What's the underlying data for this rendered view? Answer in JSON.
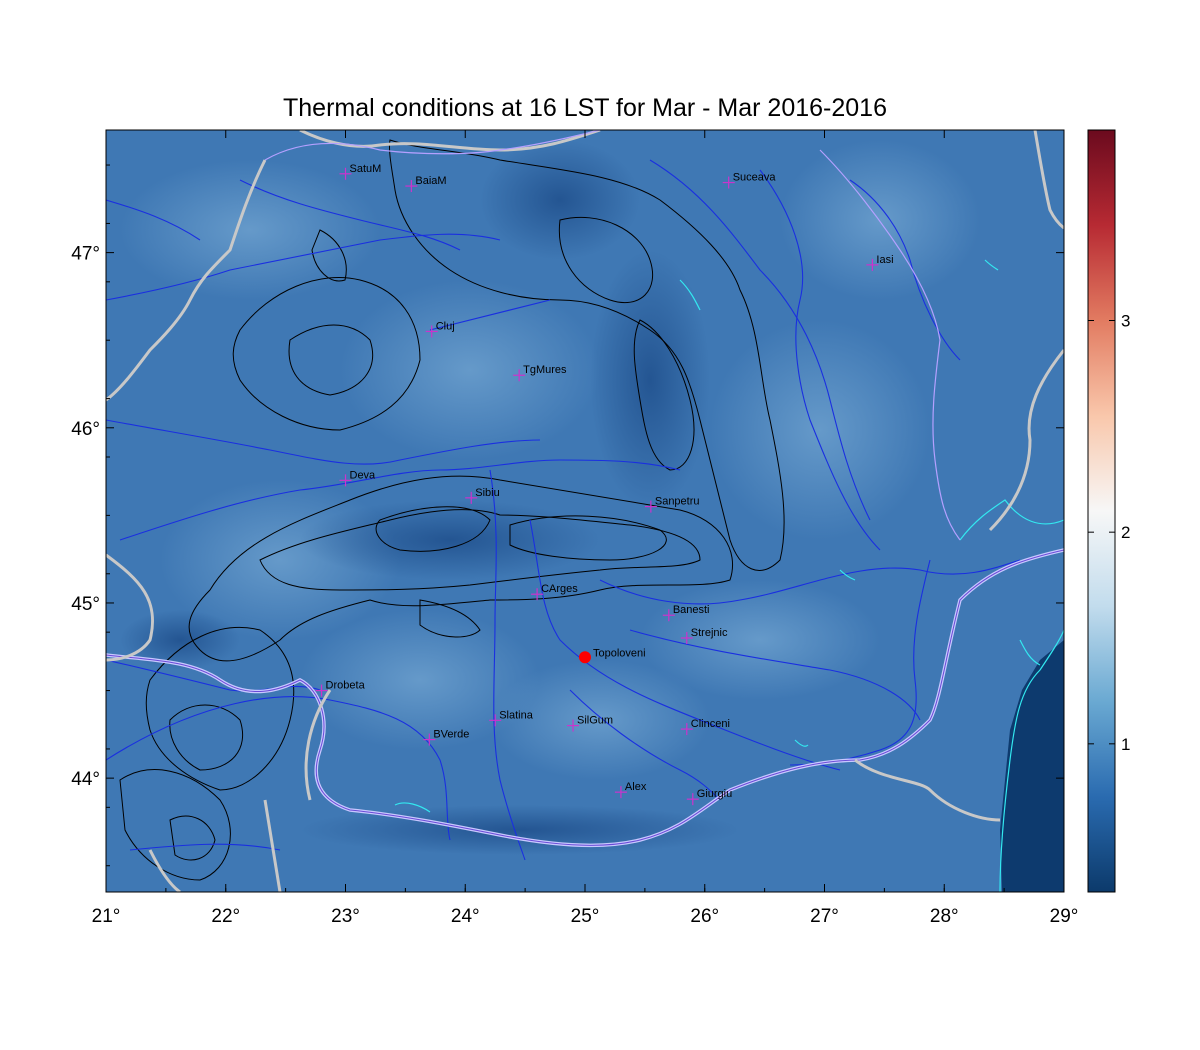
{
  "title": "Thermal conditions at 16 LST for Mar - Mar  2016-2016",
  "map": {
    "lon_range": [
      21,
      29
    ],
    "lat_range": [
      43.35,
      47.7
    ],
    "x_ticks": [
      {
        "value": 21,
        "label": "21°"
      },
      {
        "value": 22,
        "label": "22°"
      },
      {
        "value": 23,
        "label": "23°"
      },
      {
        "value": 24,
        "label": "24°"
      },
      {
        "value": 25,
        "label": "25°"
      },
      {
        "value": 26,
        "label": "26°"
      },
      {
        "value": 27,
        "label": "27°"
      },
      {
        "value": 28,
        "label": "28°"
      },
      {
        "value": 29,
        "label": "29°"
      }
    ],
    "y_ticks": [
      {
        "value": 44,
        "label": "44°"
      },
      {
        "value": 45,
        "label": "45°"
      },
      {
        "value": 46,
        "label": "46°"
      },
      {
        "value": 47,
        "label": "47°"
      }
    ],
    "background_color": "#3f78b4",
    "border_color": "#c8c8c8",
    "river_color": "#1a2fe0",
    "contour_color": "#000000",
    "lake_color": "#33e8f0",
    "sea_color": "#0d3a6e"
  },
  "cities": [
    {
      "name": "SatuM",
      "lon": 23.0,
      "lat": 47.45
    },
    {
      "name": "BaiaM",
      "lon": 23.55,
      "lat": 47.38
    },
    {
      "name": "Suceava",
      "lon": 26.2,
      "lat": 47.4
    },
    {
      "name": "Iasi",
      "lon": 27.4,
      "lat": 46.93
    },
    {
      "name": "Cluj",
      "lon": 23.72,
      "lat": 46.55
    },
    {
      "name": "TgMures",
      "lon": 24.45,
      "lat": 46.3
    },
    {
      "name": "Deva",
      "lon": 23.0,
      "lat": 45.7
    },
    {
      "name": "Sibiu",
      "lon": 24.05,
      "lat": 45.6
    },
    {
      "name": "Sanpetru",
      "lon": 25.55,
      "lat": 45.55
    },
    {
      "name": "CArges",
      "lon": 24.6,
      "lat": 45.05
    },
    {
      "name": "Banesti",
      "lon": 25.7,
      "lat": 44.93
    },
    {
      "name": "Strejnic",
      "lon": 25.85,
      "lat": 44.8
    },
    {
      "name": "Drobeta",
      "lon": 22.8,
      "lat": 44.5
    },
    {
      "name": "Slatina",
      "lon": 24.25,
      "lat": 44.33
    },
    {
      "name": "SilGum",
      "lon": 24.9,
      "lat": 44.3
    },
    {
      "name": "Clinceni",
      "lon": 25.85,
      "lat": 44.28
    },
    {
      "name": "BVerde",
      "lon": 23.7,
      "lat": 44.22
    },
    {
      "name": "Alex",
      "lon": 25.3,
      "lat": 43.92
    },
    {
      "name": "Giurgiu",
      "lon": 25.9,
      "lat": 43.88
    }
  ],
  "highlight_station": {
    "name": "Topoloveni",
    "lon": 25.0,
    "lat": 44.69,
    "color": "#ff0000"
  },
  "colorbar": {
    "range": [
      0.3,
      3.9
    ],
    "ticks": [
      {
        "value": 1,
        "label": "1"
      },
      {
        "value": 2,
        "label": "2"
      },
      {
        "value": 3,
        "label": "3"
      }
    ],
    "colors": [
      "#0c3a6b",
      "#2a6bb0",
      "#6aa9d2",
      "#c2dced",
      "#f7f7f7",
      "#f9c7ab",
      "#e27b61",
      "#b72a33",
      "#6b0a1e"
    ]
  }
}
